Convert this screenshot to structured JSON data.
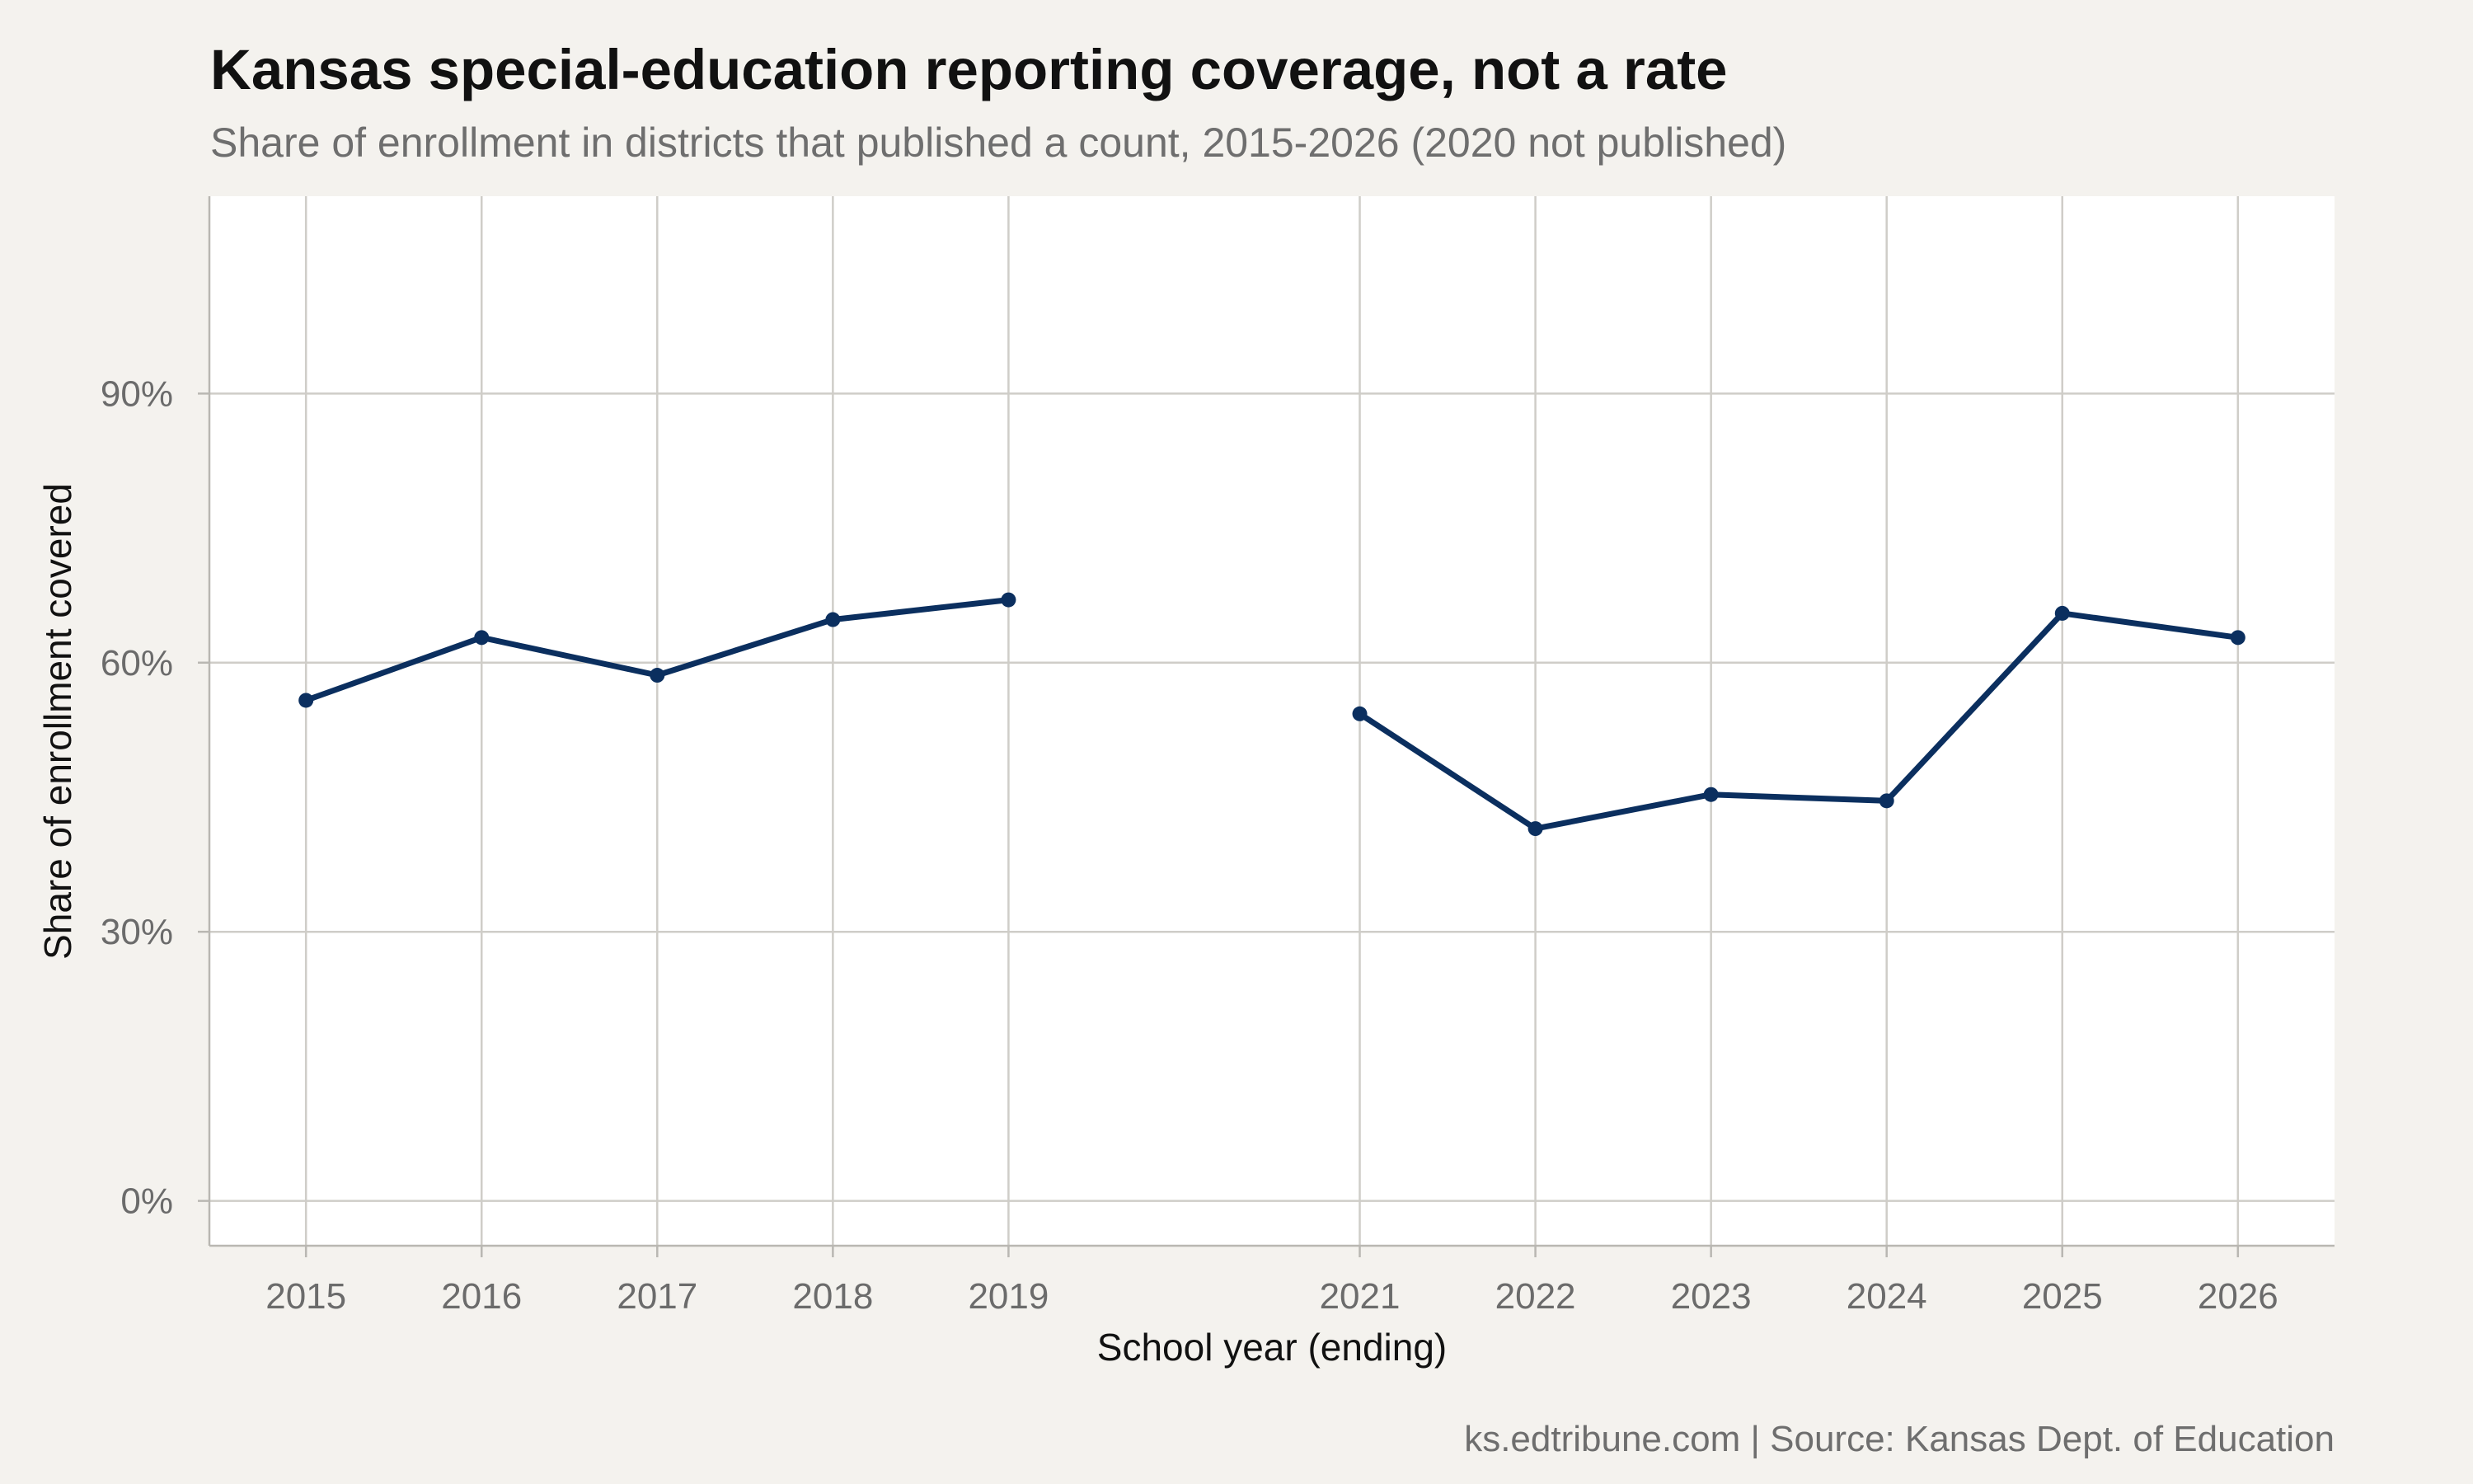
{
  "chart_data": {
    "type": "line",
    "title": "Kansas special-education reporting coverage, not a rate",
    "subtitle": "Share of enrollment in districts that published a count, 2015-2026 (2020 not published)",
    "xlabel": "School year (ending)",
    "ylabel": "Share of enrollment covered",
    "caption": "ks.edtribune.com | Source: Kansas Dept. of Education",
    "x_ticks": [
      "2015",
      "2016",
      "2017",
      "2018",
      "2019",
      "2021",
      "2022",
      "2023",
      "2024",
      "2025",
      "2026"
    ],
    "y_ticks": [
      0,
      30,
      60,
      90
    ],
    "y_tick_labels": [
      "0%",
      "30%",
      "60%",
      "90%"
    ],
    "xlim": [
      2014.45,
      2026.55
    ],
    "ylim": [
      -5,
      112
    ],
    "grid": true,
    "line_color": "#0b2f5f",
    "background": "#f4f2ee",
    "panel_background": "#ffffff",
    "series": [
      {
        "points": [
          {
            "x": 2015,
            "y": 55.8
          },
          {
            "x": 2016,
            "y": 62.8
          },
          {
            "x": 2017,
            "y": 58.6
          },
          {
            "x": 2018,
            "y": 64.8
          },
          {
            "x": 2019,
            "y": 67.0
          },
          {
            "x": 2020,
            "y": null
          },
          {
            "x": 2021,
            "y": 54.3
          },
          {
            "x": 2022,
            "y": 41.5
          },
          {
            "x": 2023,
            "y": 45.3
          },
          {
            "x": 2024,
            "y": 44.6
          },
          {
            "x": 2025,
            "y": 65.5
          },
          {
            "x": 2026,
            "y": 62.8
          }
        ]
      }
    ]
  }
}
